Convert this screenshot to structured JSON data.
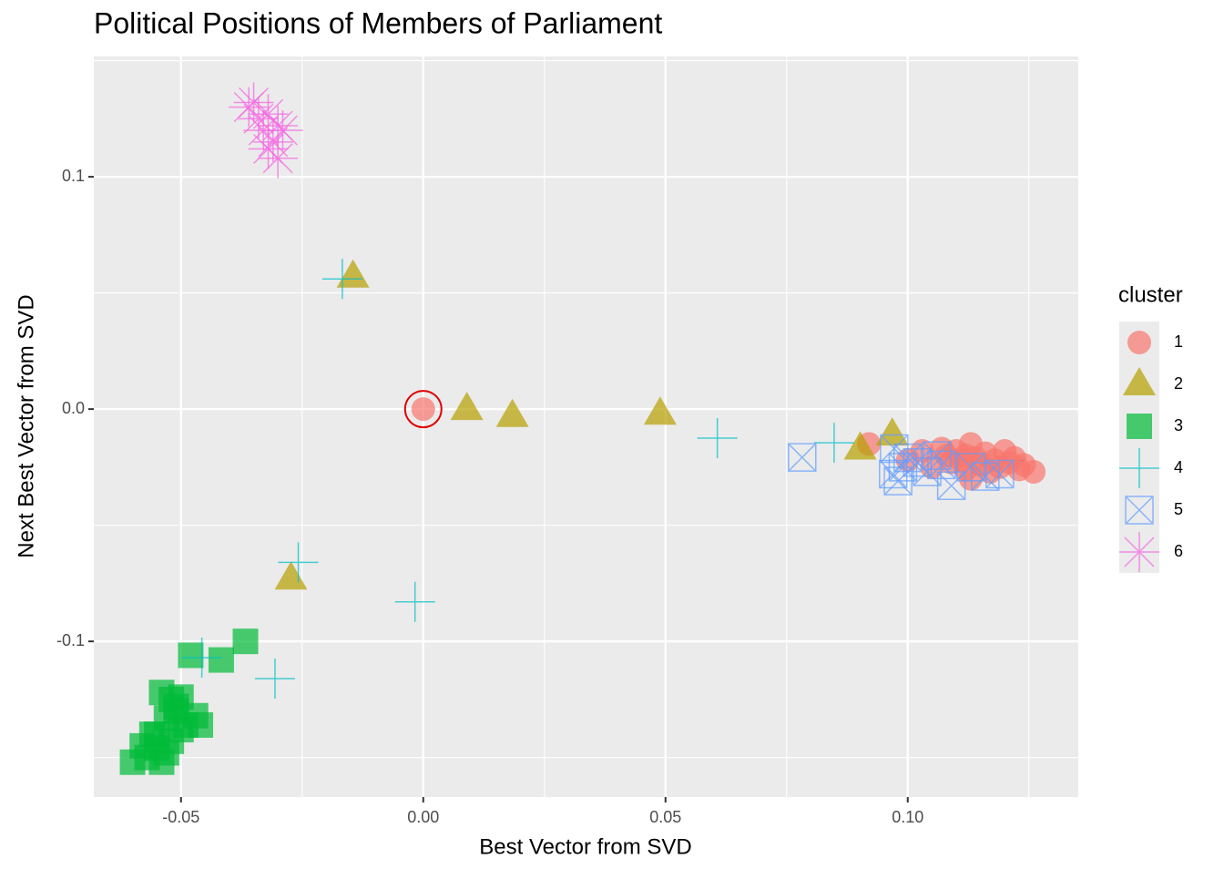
{
  "chart_data": {
    "type": "scatter",
    "title": "Political Positions of Members of Parliament",
    "x_label": "Best Vector from SVD",
    "y_label": "Next Best Vector from SVD",
    "legend_title": "cluster",
    "legend_position": "right",
    "grid": true,
    "xlim": [
      -0.068,
      0.1352
    ],
    "ylim": [
      -0.167,
      0.1518
    ],
    "xticks": [
      -0.05,
      {
        "value": 0,
        "label": "0.00"
      },
      0.05,
      {
        "value": 0.1,
        "label": "0.10"
      }
    ],
    "yticks": [
      -0.1,
      {
        "value": 0,
        "label": "0.0"
      },
      0.1
    ],
    "highlight": {
      "series": "1",
      "index": 0
    },
    "series": [
      {
        "name": "1",
        "color": "#F8766D",
        "shape": "circle",
        "x": [
          0,
          0.092,
          0.1,
          0.103,
          0.105,
          0.107,
          0.108,
          0.109,
          0.11,
          0.111,
          0.112,
          0.113,
          0.113,
          0.114,
          0.115,
          0.116,
          0.117,
          0.118,
          0.119,
          0.12,
          0.121,
          0.122,
          0.123,
          0.124,
          0.126,
          0.112
        ],
        "values": [
          0,
          -0.015,
          -0.022,
          -0.018,
          -0.025,
          -0.017,
          -0.02,
          -0.023,
          -0.018,
          -0.022,
          -0.026,
          -0.015,
          -0.03,
          -0.021,
          -0.024,
          -0.019,
          -0.027,
          -0.022,
          -0.025,
          -0.018,
          -0.023,
          -0.021,
          -0.026,
          -0.024,
          -0.027,
          -0.02
        ]
      },
      {
        "name": "2",
        "color": "#B79F00",
        "shape": "triangle",
        "x": [
          -0.0145,
          0.009,
          0.0184,
          0.0489,
          -0.0273,
          0.0902,
          0.0968
        ],
        "values": [
          0.057,
          0.0,
          -0.003,
          -0.002,
          -0.073,
          -0.017,
          -0.011
        ]
      },
      {
        "name": "3",
        "color": "#00BA38",
        "shape": "square",
        "x": [
          -0.0367,
          -0.0417,
          -0.048,
          -0.054,
          -0.052,
          -0.05,
          -0.051,
          -0.053,
          -0.049,
          -0.047,
          -0.046,
          -0.055,
          -0.056,
          -0.058,
          -0.06,
          -0.057,
          -0.054,
          -0.052,
          -0.05,
          -0.053,
          -0.055,
          -0.051
        ],
        "values": [
          -0.1,
          -0.108,
          -0.106,
          -0.122,
          -0.125,
          -0.124,
          -0.13,
          -0.133,
          -0.136,
          -0.132,
          -0.136,
          -0.14,
          -0.14,
          -0.145,
          -0.152,
          -0.15,
          -0.152,
          -0.143,
          -0.138,
          -0.148,
          -0.146,
          -0.128
        ]
      },
      {
        "name": "4",
        "color": "#00BFC4",
        "shape": "plus",
        "x": [
          -0.0167,
          0.0607,
          0.0848,
          -0.0017,
          -0.0258,
          -0.0306,
          -0.0457
        ],
        "values": [
          0.056,
          -0.0125,
          -0.0145,
          -0.083,
          -0.066,
          -0.116,
          -0.107
        ]
      },
      {
        "name": "5",
        "color": "#619CFF",
        "shape": "boxx",
        "x": [
          0.0782,
          0.0972,
          0.097,
          0.099,
          0.1,
          0.102,
          0.104,
          0.106,
          0.109,
          0.113,
          0.116,
          0.119,
          0.098,
          0.107
        ],
        "values": [
          -0.0208,
          -0.017,
          -0.028,
          -0.025,
          -0.021,
          -0.023,
          -0.027,
          -0.02,
          -0.033,
          -0.025,
          -0.029,
          -0.028,
          -0.031,
          -0.024
        ]
      },
      {
        "name": "6",
        "color": "#F564E3",
        "shape": "asterisk",
        "x": [
          -0.036,
          -0.035,
          -0.034,
          -0.033,
          -0.032,
          -0.031,
          -0.03,
          -0.029,
          -0.03,
          -0.032
        ],
        "values": [
          0.13,
          0.132,
          0.125,
          0.12,
          0.127,
          0.115,
          0.122,
          0.12,
          0.108,
          0.112
        ]
      }
    ]
  }
}
